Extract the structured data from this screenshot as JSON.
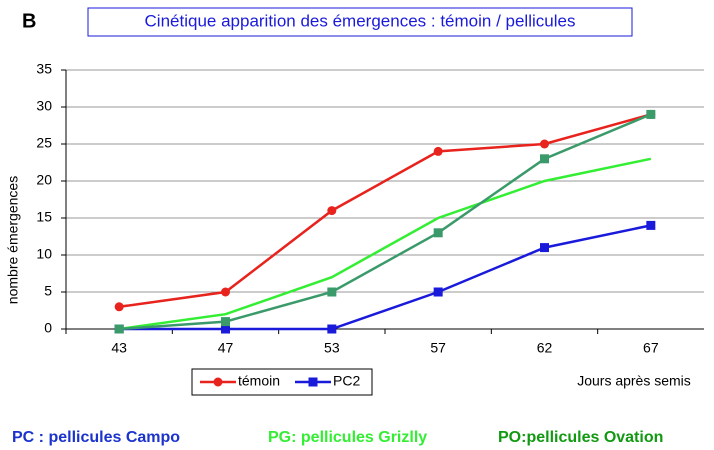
{
  "chart_data": {
    "type": "line",
    "label": "B",
    "title": "Cinétique apparition des émergences : témoin / pellicules",
    "y_label": "nombre émergences",
    "x_label": "Jours après semis",
    "categories": [
      "43",
      "47",
      "53",
      "57",
      "62",
      "67"
    ],
    "series": [
      {
        "name": "témoin",
        "color": "#e8221c",
        "marker": "circle",
        "values": [
          3,
          5,
          16,
          24,
          25,
          29
        ]
      },
      {
        "name": "PC2",
        "color": "#1a1adb",
        "marker": "square",
        "values": [
          0,
          0,
          0,
          5,
          11,
          14
        ]
      },
      {
        "color": "#33ee33",
        "marker": "none",
        "values": [
          0,
          2,
          7,
          15,
          20,
          23
        ]
      },
      {
        "color": "#3a9a6a",
        "marker": "square",
        "values": [
          0,
          1,
          5,
          13,
          23,
          29
        ]
      }
    ],
    "ylim": [
      0,
      35
    ],
    "yticks": [
      0,
      5,
      10,
      15,
      20,
      25,
      30,
      35
    ],
    "grid": true,
    "annotations": [
      {
        "text": "PC : pellicules Campo",
        "color": "#1a33cc"
      },
      {
        "text": "PG: pellicules Grizlly",
        "color": "#33ee33"
      },
      {
        "text": "PO:pellicules Ovation",
        "color": "#119911"
      }
    ]
  }
}
